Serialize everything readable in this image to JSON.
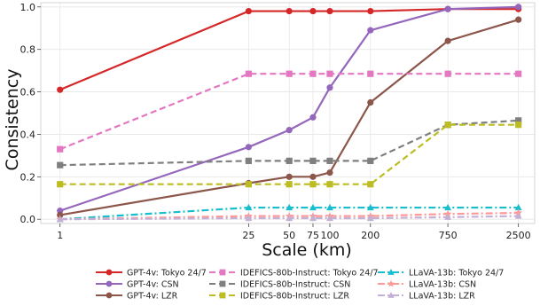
{
  "chart_data": {
    "type": "line",
    "x_scale": "log",
    "xlabel": "Scale (km)",
    "ylabel": "Consistency",
    "x_ticks": [
      1,
      25,
      50,
      75,
      100,
      200,
      750,
      2500
    ],
    "x_tick_labels": [
      "1",
      "25",
      "50",
      "75",
      "100",
      "200",
      "750",
      "2500"
    ],
    "y_ticks": [
      0.0,
      0.2,
      0.4,
      0.6,
      0.8,
      1.0
    ],
    "y_tick_labels": [
      "0.0",
      "0.2",
      "0.4",
      "0.6",
      "0.8",
      "1.0"
    ],
    "ylim": [
      -0.02,
      1.02
    ],
    "xlim": [
      0.72,
      3300
    ],
    "grid": true,
    "legend_placement": "bottom",
    "series": [
      {
        "name": "GPT-4v: Tokyo 24/7",
        "color": "#d62728",
        "dash": "solid",
        "marker": "circle",
        "x": [
          1,
          25,
          50,
          75,
          100,
          200,
          750,
          2500
        ],
        "values": [
          0.61,
          0.98,
          0.98,
          0.98,
          0.98,
          0.98,
          0.99,
          0.99
        ]
      },
      {
        "name": "GPT-4v: CSN",
        "color": "#9467bd",
        "dash": "solid",
        "marker": "circle",
        "x": [
          1,
          25,
          50,
          75,
          100,
          200,
          750,
          2500
        ],
        "values": [
          0.04,
          0.34,
          0.42,
          0.48,
          0.62,
          0.89,
          0.99,
          1.0
        ]
      },
      {
        "name": "GPT-4v: LZR",
        "color": "#8c564b",
        "dash": "solid",
        "marker": "circle",
        "x": [
          1,
          25,
          50,
          75,
          100,
          200,
          750,
          2500
        ],
        "values": [
          0.02,
          0.17,
          0.2,
          0.2,
          0.22,
          0.55,
          0.84,
          0.94
        ]
      },
      {
        "name": "IDEFICS-80b-Instruct: Tokyo 24/7",
        "color": "#e377c2",
        "dash": "dashed",
        "marker": "square",
        "x": [
          1,
          25,
          50,
          75,
          100,
          200,
          750,
          2500
        ],
        "values": [
          0.33,
          0.685,
          0.685,
          0.685,
          0.685,
          0.685,
          0.685,
          0.685
        ]
      },
      {
        "name": "IDEFICS-80b-Instruct: CSN",
        "color": "#7f7f7f",
        "dash": "dashed",
        "marker": "square",
        "x": [
          1,
          25,
          50,
          75,
          100,
          200,
          750,
          2500
        ],
        "values": [
          0.255,
          0.275,
          0.275,
          0.275,
          0.275,
          0.275,
          0.445,
          0.465
        ]
      },
      {
        "name": "IDEFICS-80b-Instruct: LZR",
        "color": "#bcbd22",
        "dash": "dashed",
        "marker": "square",
        "x": [
          1,
          25,
          50,
          75,
          100,
          200,
          750,
          2500
        ],
        "values": [
          0.165,
          0.165,
          0.165,
          0.165,
          0.165,
          0.165,
          0.445,
          0.445
        ]
      },
      {
        "name": "LLaVA-13b: Tokyo 24/7",
        "color": "#17becf",
        "dash": "dashdot",
        "marker": "triangle",
        "x": [
          1,
          25,
          50,
          75,
          100,
          200,
          750,
          2500
        ],
        "values": [
          0.0,
          0.055,
          0.055,
          0.055,
          0.055,
          0.055,
          0.055,
          0.055
        ]
      },
      {
        "name": "LLaVA-13b: CSN",
        "color": "#ff9896",
        "dash": "dashdot",
        "marker": "star",
        "x": [
          1,
          25,
          50,
          75,
          100,
          200,
          750,
          2500
        ],
        "values": [
          0.0,
          0.015,
          0.015,
          0.015,
          0.015,
          0.015,
          0.025,
          0.03
        ]
      },
      {
        "name": "LLaVA-13b: LZR",
        "color": "#c5b0d5",
        "dash": "dashdot",
        "marker": "triangle",
        "x": [
          1,
          25,
          50,
          75,
          100,
          200,
          750,
          2500
        ],
        "values": [
          0.0,
          0.005,
          0.005,
          0.005,
          0.005,
          0.005,
          0.01,
          0.015
        ]
      }
    ]
  }
}
